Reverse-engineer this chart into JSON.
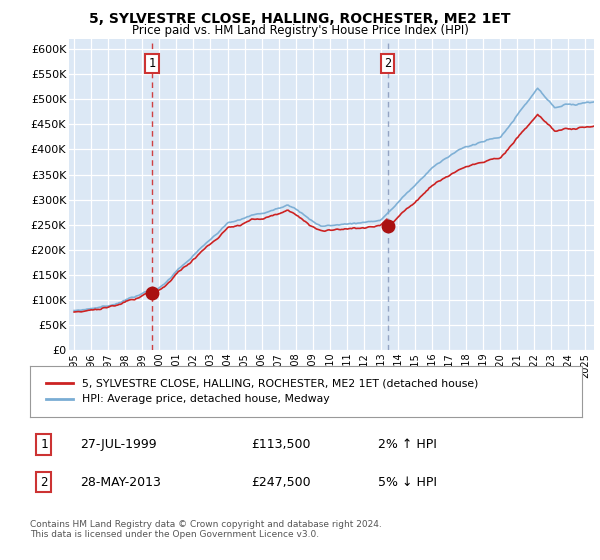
{
  "title": "5, SYLVESTRE CLOSE, HALLING, ROCHESTER, ME2 1ET",
  "subtitle": "Price paid vs. HM Land Registry's House Price Index (HPI)",
  "ylabel_ticks": [
    "£0",
    "£50K",
    "£100K",
    "£150K",
    "£200K",
    "£250K",
    "£300K",
    "£350K",
    "£400K",
    "£450K",
    "£500K",
    "£550K",
    "£600K"
  ],
  "ytick_values": [
    0,
    50000,
    100000,
    150000,
    200000,
    250000,
    300000,
    350000,
    400000,
    450000,
    500000,
    550000,
    600000
  ],
  "ylim": [
    0,
    620000
  ],
  "xlim_start": 1994.7,
  "xlim_end": 2025.5,
  "sale1_date": 1999.57,
  "sale1_price": 113500,
  "sale1_label": "1",
  "sale2_date": 2013.4,
  "sale2_price": 247500,
  "sale2_label": "2",
  "bg_color": "#ffffff",
  "plot_bg_color": "#dce8f5",
  "red_line_color": "#cc2222",
  "blue_line_color": "#7aadd4",
  "dash1_color": "#cc2222",
  "dash2_color": "#8899bb",
  "marker_color": "#aa1111",
  "legend_line1": "5, SYLVESTRE CLOSE, HALLING, ROCHESTER, ME2 1ET (detached house)",
  "legend_line2": "HPI: Average price, detached house, Medway",
  "annotation1_date": "27-JUL-1999",
  "annotation1_price": "£113,500",
  "annotation1_hpi": "2% ↑ HPI",
  "annotation2_date": "28-MAY-2013",
  "annotation2_price": "£247,500",
  "annotation2_hpi": "5% ↓ HPI",
  "footer": "Contains HM Land Registry data © Crown copyright and database right 2024.\nThis data is licensed under the Open Government Licence v3.0.",
  "xtick_years": [
    1995,
    1996,
    1997,
    1998,
    1999,
    2000,
    2001,
    2002,
    2003,
    2004,
    2005,
    2006,
    2007,
    2008,
    2009,
    2010,
    2011,
    2012,
    2013,
    2014,
    2015,
    2016,
    2017,
    2018,
    2019,
    2020,
    2021,
    2022,
    2023,
    2024,
    2025
  ]
}
